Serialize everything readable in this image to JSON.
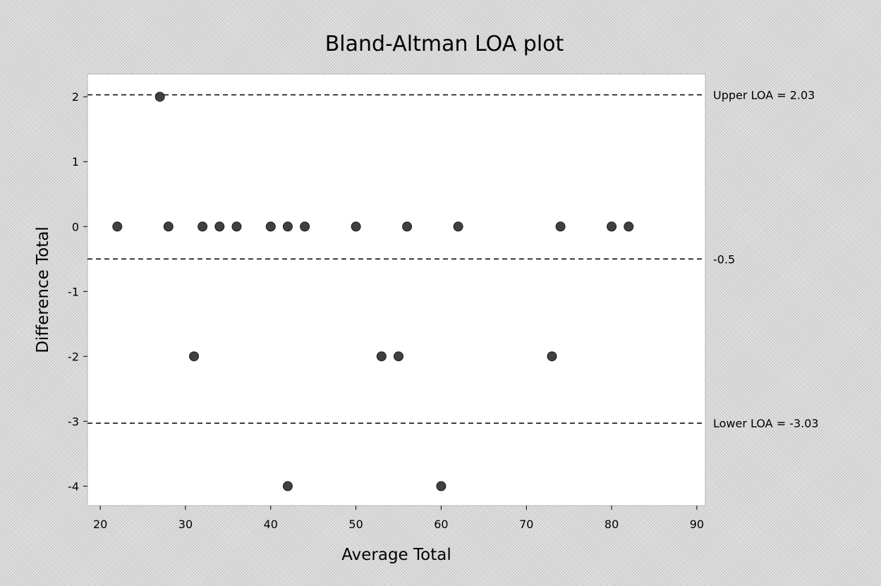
{
  "chart_data": {
    "type": "scatter",
    "title": "Bland-Altman LOA plot",
    "xlabel": "Average Total",
    "ylabel": "Difference Total",
    "xlim": [
      18.5,
      91
    ],
    "ylim": [
      -4.3,
      2.35
    ],
    "xticks": [
      20,
      30,
      40,
      50,
      60,
      70,
      80,
      90
    ],
    "yticks": [
      2,
      1,
      0,
      -1,
      -2,
      -3,
      -4
    ],
    "grid": false,
    "marker_color": "#404040",
    "points": [
      {
        "x": 22,
        "y": 0
      },
      {
        "x": 27,
        "y": 2
      },
      {
        "x": 28,
        "y": 0
      },
      {
        "x": 31,
        "y": -2
      },
      {
        "x": 32,
        "y": 0
      },
      {
        "x": 34,
        "y": 0
      },
      {
        "x": 36,
        "y": 0
      },
      {
        "x": 40,
        "y": 0
      },
      {
        "x": 42,
        "y": 0
      },
      {
        "x": 42,
        "y": -4
      },
      {
        "x": 44,
        "y": 0
      },
      {
        "x": 50,
        "y": 0
      },
      {
        "x": 53,
        "y": -2
      },
      {
        "x": 55,
        "y": -2
      },
      {
        "x": 56,
        "y": 0
      },
      {
        "x": 60,
        "y": -4
      },
      {
        "x": 62,
        "y": 0
      },
      {
        "x": 73,
        "y": -2
      },
      {
        "x": 74,
        "y": 0
      },
      {
        "x": 80,
        "y": 0
      },
      {
        "x": 82,
        "y": 0
      }
    ],
    "reference_lines": [
      {
        "value": 2.03,
        "label": "Upper LOA = 2.03"
      },
      {
        "value": -0.5,
        "label": "-0.5"
      },
      {
        "value": -3.03,
        "label": "Lower LOA =  -3.03"
      }
    ]
  }
}
